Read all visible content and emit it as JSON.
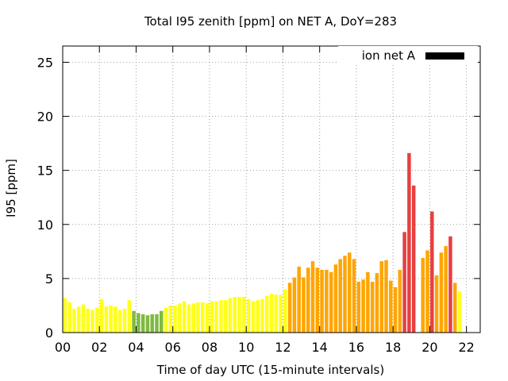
{
  "chart_data": {
    "type": "bar",
    "title": "Total I95 zenith [ppm] on NET A, DoY=283",
    "xlabel": "Time of day UTC (15-minute intervals)",
    "ylabel": "I95 [ppm]",
    "xlim": [
      0,
      22.75
    ],
    "ylim": [
      0,
      26.5
    ],
    "xticks": [
      "00",
      "02",
      "04",
      "06",
      "08",
      "10",
      "12",
      "14",
      "16",
      "18",
      "20",
      "22"
    ],
    "xtick_values": [
      0,
      2,
      4,
      6,
      8,
      10,
      12,
      14,
      16,
      18,
      20,
      22
    ],
    "yticks": [
      "0",
      "5",
      "10",
      "15",
      "20",
      "25"
    ],
    "ytick_values": [
      0,
      5,
      10,
      15,
      20,
      25
    ],
    "grid": true,
    "legend": {
      "label": "ion net A",
      "position": "top-right",
      "color": "#000000"
    },
    "bar_interval_hours": 0.25,
    "colors": {
      "green": "#7fba3f",
      "yellow": "#ffff1a",
      "orange": "#ffa500",
      "red": "#e83f3f"
    },
    "values": [
      3.2,
      2.8,
      2.2,
      2.4,
      2.6,
      2.2,
      2.1,
      2.3,
      3.1,
      2.4,
      2.5,
      2.4,
      2.1,
      2.2,
      3.0,
      2.0,
      1.8,
      1.7,
      1.6,
      1.7,
      1.7,
      2.0,
      2.3,
      2.5,
      2.5,
      2.7,
      2.9,
      2.6,
      2.7,
      2.8,
      2.8,
      2.7,
      2.9,
      2.9,
      3.0,
      3.0,
      3.2,
      3.3,
      3.3,
      3.3,
      3.1,
      2.9,
      3.0,
      3.1,
      3.4,
      3.6,
      3.5,
      3.5,
      4.0,
      4.6,
      5.1,
      6.1,
      5.1,
      6.0,
      6.6,
      6.0,
      5.8,
      5.8,
      5.6,
      6.3,
      6.8,
      7.1,
      7.4,
      6.8,
      4.7,
      4.9,
      5.6,
      4.7,
      5.5,
      6.6,
      6.7,
      4.8,
      4.2,
      5.8,
      9.3,
      16.6,
      13.6,
      0.0,
      6.9,
      7.6,
      11.2,
      5.3,
      7.4,
      8.0,
      8.9,
      4.6,
      3.8
    ],
    "bar_colors": [
      "yellow",
      "yellow",
      "yellow",
      "yellow",
      "yellow",
      "yellow",
      "yellow",
      "yellow",
      "yellow",
      "yellow",
      "yellow",
      "yellow",
      "yellow",
      "yellow",
      "yellow",
      "green",
      "green",
      "green",
      "green",
      "green",
      "green",
      "green",
      "yellow",
      "yellow",
      "yellow",
      "yellow",
      "yellow",
      "yellow",
      "yellow",
      "yellow",
      "yellow",
      "yellow",
      "yellow",
      "yellow",
      "yellow",
      "yellow",
      "yellow",
      "yellow",
      "yellow",
      "yellow",
      "yellow",
      "yellow",
      "yellow",
      "yellow",
      "yellow",
      "yellow",
      "yellow",
      "yellow",
      "yellow",
      "orange",
      "orange",
      "orange",
      "orange",
      "orange",
      "orange",
      "orange",
      "orange",
      "orange",
      "orange",
      "orange",
      "orange",
      "orange",
      "orange",
      "orange",
      "orange",
      "orange",
      "orange",
      "orange",
      "orange",
      "orange",
      "orange",
      "orange",
      "orange",
      "orange",
      "red",
      "red",
      "red",
      "red",
      "orange",
      "orange",
      "red",
      "orange",
      "orange",
      "orange",
      "red",
      "orange",
      "yellow"
    ]
  }
}
